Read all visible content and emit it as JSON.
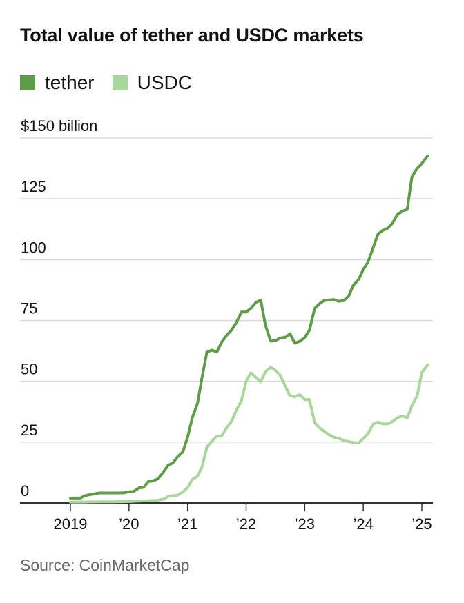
{
  "colors": {
    "tether": "#5e9c48",
    "usdc": "#a9d69a",
    "grid": "#d9d9d9",
    "axis": "#333333"
  },
  "source": "Source: CoinMarketCap",
  "chart_data": {
    "type": "line",
    "title": "Total value of tether and USDC markets",
    "xlabel": "",
    "ylabel": "",
    "unit_label": "$150 billion",
    "xlim": [
      2019.0,
      2025.15
    ],
    "ylim": [
      0,
      150
    ],
    "grid": true,
    "legend_position": "top-left",
    "x_ticks": [
      {
        "value": 2019,
        "label": "2019"
      },
      {
        "value": 2020,
        "label": "’20"
      },
      {
        "value": 2021,
        "label": "’21"
      },
      {
        "value": 2022,
        "label": "’22"
      },
      {
        "value": 2023,
        "label": "’23"
      },
      {
        "value": 2024,
        "label": "’24"
      },
      {
        "value": 2025,
        "label": "’25"
      }
    ],
    "y_ticks": [
      {
        "value": 150,
        "label": "$150 billion"
      },
      {
        "value": 125,
        "label": "125"
      },
      {
        "value": 100,
        "label": "100"
      },
      {
        "value": 75,
        "label": "75"
      },
      {
        "value": 50,
        "label": "50"
      },
      {
        "value": 25,
        "label": "25"
      },
      {
        "value": 0,
        "label": "0"
      }
    ],
    "series": [
      {
        "name": "tether",
        "color": "#5e9c48",
        "points": [
          [
            2019.0,
            2.0
          ],
          [
            2019.17,
            2.0
          ],
          [
            2019.25,
            3.0
          ],
          [
            2019.33,
            3.4
          ],
          [
            2019.5,
            4.1
          ],
          [
            2019.67,
            4.1
          ],
          [
            2019.83,
            4.1
          ],
          [
            2019.92,
            4.2
          ],
          [
            2020.0,
            4.6
          ],
          [
            2020.08,
            4.7
          ],
          [
            2020.17,
            6.2
          ],
          [
            2020.25,
            6.4
          ],
          [
            2020.33,
            8.8
          ],
          [
            2020.42,
            9.2
          ],
          [
            2020.5,
            10.0
          ],
          [
            2020.58,
            12.5
          ],
          [
            2020.67,
            15.5
          ],
          [
            2020.75,
            16.5
          ],
          [
            2020.83,
            19.0
          ],
          [
            2020.92,
            21.0
          ],
          [
            2021.0,
            27.0
          ],
          [
            2021.08,
            35.0
          ],
          [
            2021.17,
            41.0
          ],
          [
            2021.25,
            52.0
          ],
          [
            2021.33,
            62.0
          ],
          [
            2021.42,
            62.8
          ],
          [
            2021.5,
            62.0
          ],
          [
            2021.58,
            66.0
          ],
          [
            2021.67,
            69.0
          ],
          [
            2021.75,
            71.0
          ],
          [
            2021.83,
            74.0
          ],
          [
            2021.92,
            78.5
          ],
          [
            2022.0,
            78.5
          ],
          [
            2022.08,
            80.0
          ],
          [
            2022.17,
            82.5
          ],
          [
            2022.25,
            83.3
          ],
          [
            2022.33,
            73.0
          ],
          [
            2022.42,
            66.5
          ],
          [
            2022.5,
            66.7
          ],
          [
            2022.58,
            67.8
          ],
          [
            2022.67,
            68.1
          ],
          [
            2022.75,
            69.5
          ],
          [
            2022.83,
            65.7
          ],
          [
            2022.92,
            66.5
          ],
          [
            2023.0,
            68.0
          ],
          [
            2023.08,
            71.0
          ],
          [
            2023.17,
            80.0
          ],
          [
            2023.25,
            81.8
          ],
          [
            2023.33,
            83.2
          ],
          [
            2023.42,
            83.4
          ],
          [
            2023.5,
            83.6
          ],
          [
            2023.58,
            82.9
          ],
          [
            2023.67,
            83.2
          ],
          [
            2023.75,
            85.0
          ],
          [
            2023.83,
            89.5
          ],
          [
            2023.92,
            91.8
          ],
          [
            2024.0,
            96.0
          ],
          [
            2024.08,
            99.0
          ],
          [
            2024.17,
            105.0
          ],
          [
            2024.25,
            110.5
          ],
          [
            2024.33,
            112.0
          ],
          [
            2024.42,
            113.0
          ],
          [
            2024.5,
            115.0
          ],
          [
            2024.58,
            118.5
          ],
          [
            2024.67,
            120.0
          ],
          [
            2024.75,
            120.6
          ],
          [
            2024.83,
            134.0
          ],
          [
            2024.92,
            137.5
          ],
          [
            2025.0,
            139.5
          ],
          [
            2025.1,
            142.7
          ]
        ]
      },
      {
        "name": "USDC",
        "color": "#a9d69a",
        "points": [
          [
            2019.0,
            0.4
          ],
          [
            2019.25,
            0.4
          ],
          [
            2019.5,
            0.5
          ],
          [
            2019.75,
            0.5
          ],
          [
            2020.0,
            0.6
          ],
          [
            2020.17,
            0.8
          ],
          [
            2020.33,
            0.9
          ],
          [
            2020.5,
            1.1
          ],
          [
            2020.58,
            1.5
          ],
          [
            2020.67,
            2.7
          ],
          [
            2020.75,
            3.0
          ],
          [
            2020.83,
            3.2
          ],
          [
            2020.92,
            4.5
          ],
          [
            2021.0,
            6.3
          ],
          [
            2021.08,
            9.6
          ],
          [
            2021.17,
            11.0
          ],
          [
            2021.25,
            15.0
          ],
          [
            2021.33,
            23.0
          ],
          [
            2021.42,
            25.5
          ],
          [
            2021.5,
            27.5
          ],
          [
            2021.58,
            27.5
          ],
          [
            2021.67,
            31.0
          ],
          [
            2021.75,
            33.5
          ],
          [
            2021.83,
            38.0
          ],
          [
            2021.92,
            42.0
          ],
          [
            2022.0,
            50.0
          ],
          [
            2022.08,
            53.5
          ],
          [
            2022.17,
            51.5
          ],
          [
            2022.25,
            49.8
          ],
          [
            2022.33,
            54.0
          ],
          [
            2022.42,
            55.8
          ],
          [
            2022.5,
            54.5
          ],
          [
            2022.58,
            52.5
          ],
          [
            2022.67,
            48.0
          ],
          [
            2022.75,
            44.0
          ],
          [
            2022.83,
            43.7
          ],
          [
            2022.92,
            44.5
          ],
          [
            2023.0,
            42.5
          ],
          [
            2023.08,
            42.5
          ],
          [
            2023.17,
            33.0
          ],
          [
            2023.25,
            31.0
          ],
          [
            2023.33,
            29.5
          ],
          [
            2023.42,
            28.0
          ],
          [
            2023.5,
            27.0
          ],
          [
            2023.58,
            26.6
          ],
          [
            2023.67,
            25.6
          ],
          [
            2023.75,
            25.2
          ],
          [
            2023.83,
            24.8
          ],
          [
            2023.92,
            24.6
          ],
          [
            2024.0,
            26.5
          ],
          [
            2024.08,
            28.5
          ],
          [
            2024.17,
            32.5
          ],
          [
            2024.25,
            33.2
          ],
          [
            2024.33,
            32.5
          ],
          [
            2024.42,
            32.5
          ],
          [
            2024.5,
            33.5
          ],
          [
            2024.58,
            35.0
          ],
          [
            2024.67,
            35.8
          ],
          [
            2024.75,
            35.0
          ],
          [
            2024.83,
            40.0
          ],
          [
            2024.92,
            44.0
          ],
          [
            2025.0,
            53.5
          ],
          [
            2025.1,
            56.8
          ]
        ]
      }
    ]
  }
}
